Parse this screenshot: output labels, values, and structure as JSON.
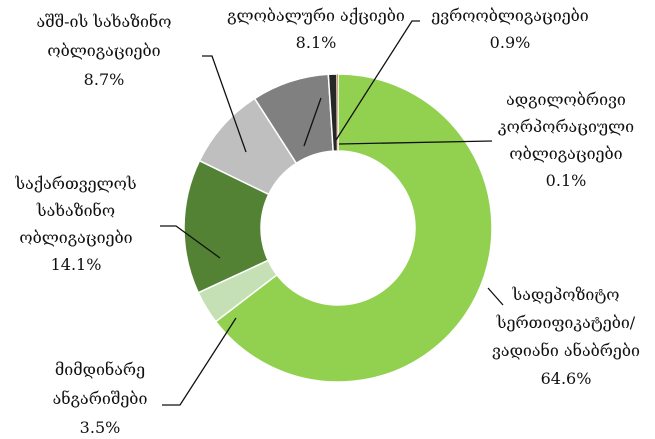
{
  "chart_data": {
    "type": "donut",
    "categories": [
      [
        "სადეპოზიტო",
        "სერთიფიკატები/",
        "ვადიანი ანაბრები"
      ],
      [
        "მიმდინარე",
        "ანგარიშები"
      ],
      [
        "საქართველოს",
        "სახაზინო",
        "ობლიგაციები"
      ],
      [
        "აშშ-ის სახაზინო",
        "ობლიგაციები"
      ],
      [
        "გლობალური აქციები"
      ],
      [
        "ევროობლიგაციები"
      ],
      [
        "ადგილობრივი",
        "კორპორაციული",
        "ობლიგაციები"
      ]
    ],
    "values": [
      64.6,
      3.5,
      14.1,
      8.7,
      8.1,
      0.9,
      0.1
    ],
    "value_labels": [
      "64.6%",
      "3.5%",
      "14.1%",
      "8.7%",
      "8.1%",
      "0.9%",
      "0.1%"
    ],
    "colors": [
      "#92d050",
      "#c5e0b4",
      "#548235",
      "#bfbfbf",
      "#808080",
      "#262626",
      "#c55a11"
    ]
  }
}
